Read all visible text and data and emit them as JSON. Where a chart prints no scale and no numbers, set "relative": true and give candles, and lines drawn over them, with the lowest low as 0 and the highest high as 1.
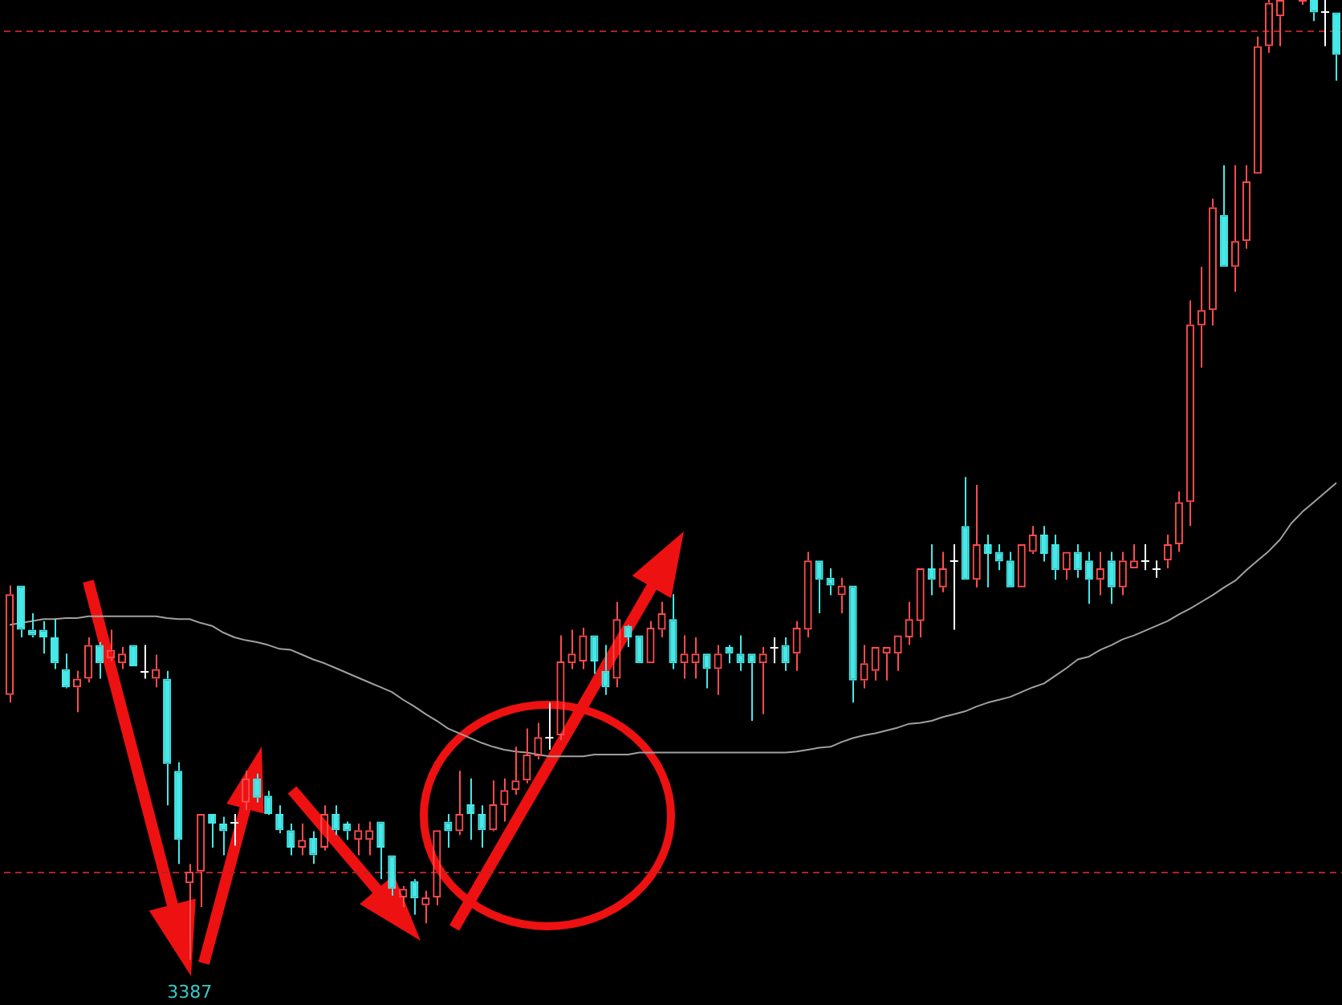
{
  "chart_data": {
    "type": "candlestick",
    "relative": true,
    "categories": [
      null,
      null,
      null,
      null,
      null,
      null,
      null,
      null,
      null,
      null,
      null,
      null,
      null,
      null,
      null,
      null,
      null,
      null,
      null,
      null,
      null,
      null,
      null,
      null,
      null,
      null,
      null,
      null,
      null,
      null,
      null,
      null,
      null,
      null,
      null,
      null,
      null,
      null,
      null,
      null,
      null,
      null,
      null,
      null,
      null,
      null,
      null,
      null,
      null,
      null,
      null,
      null,
      null,
      null,
      null,
      null,
      null,
      null,
      null,
      null,
      null,
      null,
      null,
      null,
      null,
      null,
      null,
      null,
      null,
      null,
      null,
      null,
      null,
      null,
      null,
      null,
      null,
      null,
      null,
      null,
      null,
      null,
      null,
      null,
      null,
      null,
      null,
      null,
      null,
      null,
      null,
      null,
      null,
      null,
      null,
      null,
      null,
      null,
      null,
      null,
      null,
      null,
      null,
      null,
      null,
      null,
      null,
      null,
      null,
      null,
      null,
      null,
      null,
      null,
      null,
      null,
      null,
      null,
      null
    ],
    "ohlc": [
      [
        0.276,
        0.39,
        0.268,
        0.381
      ],
      [
        0.39,
        0.39,
        0.336,
        0.344
      ],
      [
        0.344,
        0.361,
        0.336,
        0.338
      ],
      [
        0.344,
        0.353,
        0.319,
        0.336
      ],
      [
        0.336,
        0.355,
        0.303,
        0.309
      ],
      [
        0.303,
        0.319,
        0.283,
        0.284
      ],
      [
        0.284,
        0.301,
        0.258,
        0.293
      ],
      [
        0.293,
        0.336,
        0.289,
        0.328
      ],
      [
        0.328,
        0.331,
        0.293,
        0.309
      ],
      [
        0.314,
        0.344,
        0.311,
        0.323
      ],
      [
        0.309,
        0.326,
        0.303,
        0.319
      ],
      [
        0.328,
        0.328,
        0.306,
        0.306
      ],
      [
        0.301,
        0.328,
        0.293,
        0.301
      ],
      [
        0.293,
        0.318,
        0.284,
        0.303
      ],
      [
        0.293,
        0.301,
        0.161,
        0.204
      ],
      [
        0.197,
        0.206,
        0.1,
        0.125
      ],
      [
        0.08,
        0.1,
        0,
        0.092
      ],
      [
        0.092,
        0.152,
        0.055,
        0.152
      ],
      [
        0.152,
        0.152,
        0.117,
        0.142
      ],
      [
        0.142,
        0.149,
        0.109,
        0.134
      ],
      [
        0.144,
        0.152,
        0.119,
        0.144
      ],
      [
        0.164,
        0.197,
        0.156,
        0.189
      ],
      [
        0.189,
        0.194,
        0.164,
        0.169
      ],
      [
        0.171,
        0.176,
        0.151,
        0.152
      ],
      [
        0.152,
        0.161,
        0.132,
        0.135
      ],
      [
        0.135,
        0.142,
        0.109,
        0.117
      ],
      [
        0.117,
        0.142,
        0.109,
        0.125
      ],
      [
        0.127,
        0.134,
        0.1,
        0.109
      ],
      [
        0.117,
        0.161,
        0.114,
        0.152
      ],
      [
        0.152,
        0.161,
        0.13,
        0.135
      ],
      [
        0.142,
        0.144,
        0.125,
        0.134
      ],
      [
        0.125,
        0.142,
        0.109,
        0.135
      ],
      [
        0.125,
        0.144,
        0.109,
        0.135
      ],
      [
        0.144,
        0.144,
        0.084,
        0.117
      ],
      [
        0.109,
        0.109,
        0.067,
        0.074
      ],
      [
        0.065,
        0.077,
        0.055,
        0.074
      ],
      [
        0.082,
        0.084,
        0.047,
        0.064
      ],
      [
        0.057,
        0.072,
        0.038,
        0.065
      ],
      [
        0.065,
        0.135,
        0.057,
        0.135
      ],
      [
        0.144,
        0.152,
        0.117,
        0.134
      ],
      [
        0.134,
        0.197,
        0.13,
        0.152
      ],
      [
        0.162,
        0.189,
        0.125,
        0.152
      ],
      [
        0.152,
        0.161,
        0.117,
        0.135
      ],
      [
        0.135,
        0.187,
        0.134,
        0.162
      ],
      [
        0.161,
        0.189,
        0.144,
        0.177
      ],
      [
        0.177,
        0.222,
        0.172,
        0.187
      ],
      [
        0.187,
        0.241,
        0.184,
        0.214
      ],
      [
        0.212,
        0.247,
        0.209,
        0.232
      ],
      [
        0.232,
        0.268,
        0.219,
        0.232
      ],
      [
        0.234,
        0.338,
        0.229,
        0.311
      ],
      [
        0.309,
        0.344,
        0.303,
        0.319
      ],
      [
        0.311,
        0.346,
        0.303,
        0.338
      ],
      [
        0.338,
        0.338,
        0.298,
        0.311
      ],
      [
        0.301,
        0.328,
        0.276,
        0.284
      ],
      [
        0.293,
        0.373,
        0.284,
        0.355
      ],
      [
        0.348,
        0.349,
        0.326,
        0.336
      ],
      [
        0.338,
        0.338,
        0.309,
        0.309
      ],
      [
        0.309,
        0.353,
        0.309,
        0.346
      ],
      [
        0.344,
        0.373,
        0.336,
        0.361
      ],
      [
        0.355,
        0.381,
        0.303,
        0.309
      ],
      [
        0.309,
        0.338,
        0.293,
        0.319
      ],
      [
        0.309,
        0.336,
        0.293,
        0.319
      ],
      [
        0.319,
        0.319,
        0.283,
        0.303
      ],
      [
        0.303,
        0.328,
        0.276,
        0.319
      ],
      [
        0.326,
        0.328,
        0.309,
        0.319
      ],
      [
        0.319,
        0.338,
        0.301,
        0.309
      ],
      [
        0.319,
        0.319,
        0.249,
        0.309
      ],
      [
        0.309,
        0.326,
        0.256,
        0.319
      ],
      [
        0.326,
        0.336,
        0.309,
        0.326
      ],
      [
        0.328,
        0.336,
        0.301,
        0.309
      ],
      [
        0.319,
        0.353,
        0.301,
        0.346
      ],
      [
        0.344,
        0.425,
        0.336,
        0.416
      ],
      [
        0.416,
        0.416,
        0.361,
        0.396
      ],
      [
        0.398,
        0.408,
        0.38,
        0.39
      ],
      [
        0.38,
        0.398,
        0.361,
        0.39
      ],
      [
        0.39,
        0.39,
        0.268,
        0.291
      ],
      [
        0.291,
        0.328,
        0.283,
        0.309
      ],
      [
        0.301,
        0.326,
        0.291,
        0.326
      ],
      [
        0.319,
        0.326,
        0.291,
        0.326
      ],
      [
        0.319,
        0.338,
        0.301,
        0.338
      ],
      [
        0.336,
        0.373,
        0.328,
        0.355
      ],
      [
        0.353,
        0.408,
        0.336,
        0.408
      ],
      [
        0.408,
        0.433,
        0.38,
        0.396
      ],
      [
        0.388,
        0.425,
        0.383,
        0.408
      ],
      [
        0.416,
        0.433,
        0.344,
        0.416
      ],
      [
        0.452,
        0.503,
        0.396,
        0.396
      ],
      [
        0.396,
        0.495,
        0.388,
        0.433
      ],
      [
        0.433,
        0.443,
        0.388,
        0.423
      ],
      [
        0.425,
        0.433,
        0.406,
        0.415
      ],
      [
        0.416,
        0.425,
        0.388,
        0.388
      ],
      [
        0.388,
        0.433,
        0.388,
        0.433
      ],
      [
        0.425,
        0.452,
        0.423,
        0.443
      ],
      [
        0.443,
        0.452,
        0.415,
        0.423
      ],
      [
        0.433,
        0.443,
        0.396,
        0.406
      ],
      [
        0.406,
        0.425,
        0.396,
        0.425
      ],
      [
        0.425,
        0.433,
        0.398,
        0.406
      ],
      [
        0.416,
        0.425,
        0.371,
        0.396
      ],
      [
        0.396,
        0.425,
        0.38,
        0.408
      ],
      [
        0.416,
        0.425,
        0.371,
        0.388
      ],
      [
        0.388,
        0.425,
        0.38,
        0.416
      ],
      [
        0.408,
        0.433,
        0.408,
        0.416
      ],
      [
        0.416,
        0.433,
        0.406,
        0.416
      ],
      [
        0.408,
        0.416,
        0.398,
        0.408
      ],
      [
        0.416,
        0.443,
        0.408,
        0.433
      ],
      [
        0.433,
        0.488,
        0.425,
        0.477
      ],
      [
        0.477,
        0.687,
        0.452,
        0.662
      ],
      [
        0.661,
        0.722,
        0.617,
        0.677
      ],
      [
        0.677,
        0.793,
        0.661,
        0.784
      ],
      [
        0.776,
        0.828,
        0.722,
        0.722
      ],
      [
        0.722,
        0.828,
        0.696,
        0.749
      ],
      [
        0.749,
        0.828,
        0.741,
        0.811
      ],
      [
        0.819,
        0.962,
        0.819,
        0.952
      ],
      [
        0.952,
        1,
        0.945,
        0.997
      ],
      [
        0.983,
        1,
        0.952,
        1
      ],
      null,
      [
        1,
        1,
        0.995,
        1
      ],
      [
        1,
        1,
        0.978,
        0.987
      ],
      [
        0.988,
        1,
        0.952,
        0.988
      ],
      [
        0.987,
        0.987,
        0.916,
        0.943
      ]
    ],
    "colors": [
      "#ff4d4d",
      "#47e8e8",
      "#47e8e8",
      "#47e8e8",
      "#47e8e8",
      "#47e8e8",
      "#ff4d4d",
      "#ff4d4d",
      "#47e8e8",
      "#ff4d4d",
      "#ff4d4d",
      "#47e8e8",
      "#ffffff",
      "#ff4d4d",
      "#47e8e8",
      "#47e8e8",
      "#ff4d4d",
      "#ff4d4d",
      "#47e8e8",
      "#47e8e8",
      "#ffffff",
      "#ff4d4d",
      "#47e8e8",
      "#47e8e8",
      "#47e8e8",
      "#47e8e8",
      "#ff4d4d",
      "#47e8e8",
      "#ff4d4d",
      "#47e8e8",
      "#47e8e8",
      "#ff4d4d",
      "#ff4d4d",
      "#47e8e8",
      "#47e8e8",
      "#ff4d4d",
      "#47e8e8",
      "#ff4d4d",
      "#ff4d4d",
      "#47e8e8",
      "#ff4d4d",
      "#47e8e8",
      "#47e8e8",
      "#ff4d4d",
      "#ff4d4d",
      "#ff4d4d",
      "#ff4d4d",
      "#ff4d4d",
      "#ffffff",
      "#ff4d4d",
      "#ff4d4d",
      "#ff4d4d",
      "#47e8e8",
      "#47e8e8",
      "#ff4d4d",
      "#47e8e8",
      "#47e8e8",
      "#ff4d4d",
      "#ff4d4d",
      "#47e8e8",
      "#ff4d4d",
      "#ff4d4d",
      "#47e8e8",
      "#ff4d4d",
      "#47e8e8",
      "#47e8e8",
      "#47e8e8",
      "#ff4d4d",
      "#ffffff",
      "#47e8e8",
      "#ff4d4d",
      "#ff4d4d",
      "#47e8e8",
      "#47e8e8",
      "#ff4d4d",
      "#47e8e8",
      "#ff4d4d",
      "#ff4d4d",
      "#ff4d4d",
      "#ff4d4d",
      "#ff4d4d",
      "#ff4d4d",
      "#47e8e8",
      "#ff4d4d",
      "#ffffff",
      "#47e8e8",
      "#ff4d4d",
      "#47e8e8",
      "#47e8e8",
      "#47e8e8",
      "#ff4d4d",
      "#ff4d4d",
      "#47e8e8",
      "#47e8e8",
      "#ff4d4d",
      "#47e8e8",
      "#47e8e8",
      "#ff4d4d",
      "#47e8e8",
      "#ff4d4d",
      "#ff4d4d",
      "#ffffff",
      "#ffffff",
      "#ff4d4d",
      "#ff4d4d",
      "#ff4d4d",
      "#ff4d4d",
      "#ff4d4d",
      "#47e8e8",
      "#ff4d4d",
      "#ff4d4d",
      "#ff4d4d",
      "#ff4d4d",
      "#ff4d4d",
      null,
      "#ff4d4d",
      "#47e8e8",
      "#ffffff",
      "#47e8e8"
    ],
    "series": [
      {
        "type": "line",
        "color": "#a0a0a0",
        "values": [
          0.349,
          0.351,
          0.353,
          0.355,
          0.355,
          0.356,
          0.356,
          0.358,
          0.358,
          0.358,
          0.358,
          0.358,
          0.358,
          0.358,
          0.356,
          0.355,
          0.355,
          0.351,
          0.348,
          0.341,
          0.336,
          0.333,
          0.331,
          0.328,
          0.324,
          0.323,
          0.318,
          0.313,
          0.309,
          0.304,
          0.299,
          0.294,
          0.289,
          0.284,
          0.279,
          0.271,
          0.264,
          0.256,
          0.249,
          0.241,
          0.236,
          0.231,
          0.226,
          0.222,
          0.219,
          0.217,
          0.216,
          0.214,
          0.212,
          0.212,
          0.212,
          0.212,
          0.214,
          0.214,
          0.214,
          0.214,
          0.216,
          0.216,
          0.216,
          0.216,
          0.216,
          0.216,
          0.216,
          0.216,
          0.216,
          0.216,
          0.216,
          0.216,
          0.216,
          0.216,
          0.217,
          0.219,
          0.221,
          0.222,
          0.227,
          0.231,
          0.234,
          0.236,
          0.239,
          0.242,
          0.246,
          0.247,
          0.249,
          0.253,
          0.256,
          0.259,
          0.264,
          0.268,
          0.271,
          0.274,
          0.279,
          0.284,
          0.288,
          0.296,
          0.304,
          0.313,
          0.316,
          0.323,
          0.328,
          0.334,
          0.338,
          0.343,
          0.348,
          0.353,
          0.36,
          0.366,
          0.373,
          0.38,
          0.388,
          0.395,
          0.406,
          0.416,
          0.426,
          0.438,
          0.455,
          0.467,
          0.477,
          0.487,
          0.497
        ]
      }
    ],
    "ref_lines": [
      {
        "axis": "y",
        "value": 0.968,
        "color": "#b22222",
        "line_style": "dashed"
      },
      {
        "axis": "y",
        "value": 0.092,
        "color": "#b22222",
        "line_style": "dashed"
      }
    ],
    "annotations": [
      {
        "text": "3387",
        "y": 0
      }
    ]
  }
}
